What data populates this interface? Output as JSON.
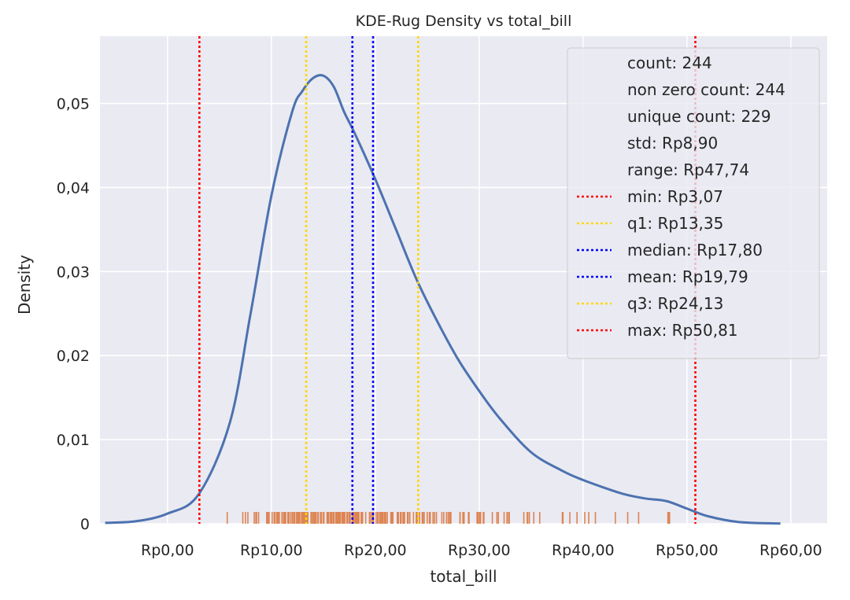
{
  "chart_data": {
    "type": "kde",
    "title": "KDE-Rug Density vs total_bill",
    "xlabel": "total_bill",
    "ylabel": "Density",
    "xlim": [
      -6.5,
      63.5
    ],
    "ylim": [
      0,
      0.058
    ],
    "grid": true,
    "x_ticks": [
      {
        "value": 0,
        "label": "Rp0,00"
      },
      {
        "value": 10,
        "label": "Rp10,00"
      },
      {
        "value": 20,
        "label": "Rp20,00"
      },
      {
        "value": 30,
        "label": "Rp30,00"
      },
      {
        "value": 40,
        "label": "Rp40,00"
      },
      {
        "value": 50,
        "label": "Rp50,00"
      },
      {
        "value": 60,
        "label": "Rp60,00"
      }
    ],
    "y_ticks": [
      {
        "value": 0,
        "label": "0"
      },
      {
        "value": 0.01,
        "label": "0,01"
      },
      {
        "value": 0.02,
        "label": "0,02"
      },
      {
        "value": 0.03,
        "label": "0,03"
      },
      {
        "value": 0.04,
        "label": "0,04"
      },
      {
        "value": 0.05,
        "label": "0,05"
      }
    ],
    "kde": {
      "color": "#4c72b0",
      "x": [
        -6,
        -3,
        0,
        3,
        6,
        8,
        10,
        12,
        13,
        14,
        15,
        16,
        17,
        18,
        20,
        22,
        24,
        26,
        28,
        30,
        32,
        35,
        38,
        40,
        42,
        44,
        46,
        48,
        50,
        52,
        55,
        59
      ],
      "y": [
        0.0001,
        0.0003,
        0.0012,
        0.0035,
        0.012,
        0.025,
        0.039,
        0.049,
        0.0515,
        0.053,
        0.0533,
        0.052,
        0.049,
        0.0465,
        0.041,
        0.035,
        0.029,
        0.024,
        0.0195,
        0.0158,
        0.0125,
        0.0085,
        0.0063,
        0.0052,
        0.0043,
        0.0035,
        0.003,
        0.0027,
        0.0018,
        0.0009,
        0.0002,
        2e-05
      ]
    },
    "rug": {
      "color": "#dd8452",
      "values": [
        5.75,
        7.25,
        7.51,
        7.74,
        8.35,
        8.51,
        8.52,
        8.58,
        8.77,
        9.55,
        9.6,
        9.68,
        9.78,
        10.07,
        10.27,
        10.29,
        10.33,
        10.34,
        10.51,
        10.59,
        10.63,
        10.65,
        10.77,
        11.02,
        11.17,
        11.24,
        11.35,
        11.38,
        11.59,
        11.61,
        11.69,
        11.87,
        12.02,
        12.16,
        12.26,
        12.43,
        12.54,
        12.6,
        12.66,
        12.69,
        12.74,
        12.9,
        13.0,
        13.03,
        13.13,
        13.16,
        13.27,
        13.28,
        13.37,
        13.39,
        13.42,
        13.51,
        13.81,
        13.94,
        14.07,
        14.15,
        14.26,
        14.31,
        14.48,
        14.52,
        14.73,
        14.78,
        14.83,
        15.01,
        15.04,
        15.06,
        15.36,
        15.38,
        15.42,
        15.48,
        15.53,
        15.69,
        15.77,
        15.81,
        15.95,
        15.98,
        16.0,
        16.04,
        16.21,
        16.27,
        16.29,
        16.31,
        16.4,
        16.45,
        16.47,
        16.49,
        16.58,
        16.66,
        16.82,
        16.93,
        16.97,
        16.99,
        17.07,
        17.26,
        17.29,
        17.31,
        17.46,
        17.47,
        17.51,
        17.59,
        17.78,
        17.81,
        17.82,
        17.89,
        17.92,
        18.04,
        18.15,
        18.24,
        18.26,
        18.28,
        18.29,
        18.35,
        18.43,
        18.64,
        18.69,
        18.71,
        18.78,
        19.08,
        19.44,
        19.49,
        19.65,
        19.77,
        19.81,
        19.82,
        20.08,
        20.23,
        20.27,
        20.29,
        20.45,
        20.49,
        20.53,
        20.65,
        20.69,
        20.76,
        20.9,
        20.92,
        21.01,
        21.16,
        21.5,
        21.58,
        21.7,
        22.12,
        22.23,
        22.42,
        22.49,
        22.67,
        22.75,
        22.76,
        22.82,
        23.1,
        23.17,
        23.33,
        23.68,
        23.95,
        24.01,
        24.06,
        24.27,
        24.52,
        24.55,
        24.59,
        24.71,
        25.0,
        25.21,
        25.28,
        25.29,
        25.56,
        25.71,
        25.89,
        26.41,
        26.59,
        26.86,
        26.88,
        27.05,
        27.18,
        27.2,
        27.28,
        28.15,
        28.17,
        28.44,
        28.55,
        28.97,
        29.03,
        29.8,
        29.85,
        29.93,
        30.06,
        30.14,
        30.4,
        30.46,
        31.27,
        31.71,
        31.85,
        32.4,
        32.68,
        32.83,
        32.9,
        34.3,
        34.63,
        34.65,
        34.81,
        34.83,
        35.26,
        35.83,
        38.01,
        38.07,
        38.73,
        39.42,
        40.17,
        40.55,
        41.19,
        43.11,
        44.3,
        45.35,
        48.17,
        48.27,
        48.33
      ]
    },
    "vlines": [
      {
        "name": "min",
        "value": 3.07,
        "color": "#ff0000"
      },
      {
        "name": "q1",
        "value": 13.35,
        "color": "#ffd700"
      },
      {
        "name": "median",
        "value": 17.8,
        "color": "#0000ff"
      },
      {
        "name": "mean",
        "value": 19.79,
        "color": "#0000ff"
      },
      {
        "name": "q3",
        "value": 24.13,
        "color": "#ffd700"
      },
      {
        "name": "max",
        "value": 50.81,
        "color": "#ff0000"
      }
    ],
    "legend": {
      "position": "top-right",
      "entries": [
        {
          "label": "count: 244",
          "color": null
        },
        {
          "label": "non zero count: 244",
          "color": null
        },
        {
          "label": "unique count: 229",
          "color": null
        },
        {
          "label": "std: Rp8,90",
          "color": null
        },
        {
          "label": "range: Rp47,74",
          "color": null
        },
        {
          "label": "min: Rp3,07",
          "color": "#ff0000"
        },
        {
          "label": "q1: Rp13,35",
          "color": "#ffd700"
        },
        {
          "label": "median: Rp17,80",
          "color": "#0000ff"
        },
        {
          "label": "mean: Rp19,79",
          "color": "#0000ff"
        },
        {
          "label": "q3: Rp24,13",
          "color": "#ffd700"
        },
        {
          "label": "max: Rp50,81",
          "color": "#ff0000"
        }
      ]
    }
  },
  "colors": {
    "plot_background": "#eaeaf2",
    "grid": "#ffffff"
  }
}
